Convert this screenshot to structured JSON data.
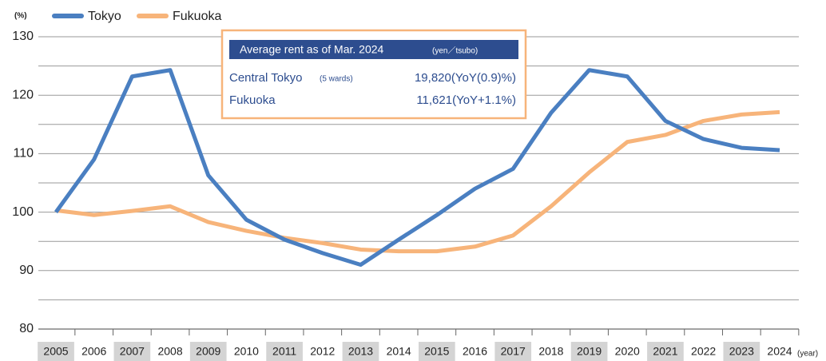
{
  "chart_data": {
    "type": "line",
    "y_unit_label": "(%)",
    "x_unit_label": "(year)",
    "categories": [
      "2005",
      "2006",
      "2007",
      "2008",
      "2009",
      "2010",
      "2011",
      "2012",
      "2013",
      "2014",
      "2015",
      "2016",
      "2017",
      "2018",
      "2019",
      "2020",
      "2021",
      "2022",
      "2023",
      "2024"
    ],
    "series": [
      {
        "name": "Tokyo",
        "color": "#4a7fc1",
        "values": [
          100,
          109,
          123.2,
          124.3,
          106.3,
          98.7,
          95.3,
          93,
          91,
          95.3,
          99.5,
          104,
          107.4,
          117,
          124.3,
          123.2,
          115.6,
          112.5,
          111,
          110.6
        ]
      },
      {
        "name": "Fukuoka",
        "color": "#f7b47a",
        "values": [
          100.3,
          99.5,
          100.2,
          101,
          98.3,
          96.8,
          95.6,
          94.7,
          93.6,
          93.3,
          93.3,
          94.1,
          96,
          101,
          106.8,
          112,
          113.2,
          115.6,
          116.7,
          117.1
        ]
      }
    ],
    "ylim": [
      80,
      130
    ],
    "yticks": [
      80,
      90,
      100,
      110,
      120,
      130
    ],
    "minor_yticks": [
      85,
      95,
      105,
      115,
      125
    ],
    "grid": true,
    "legend": "top-left",
    "info_box": {
      "title": "Average rent as of Mar. 2024",
      "title_unit": "(yen／tsubo)",
      "rows": [
        {
          "label": "Central Tokyo",
          "sublabel": "(5 wards)",
          "value": "19,820(YoY(0.9)%)"
        },
        {
          "label": "Fukuoka",
          "value": "11,621(YoY+1.1%)"
        }
      ]
    }
  }
}
